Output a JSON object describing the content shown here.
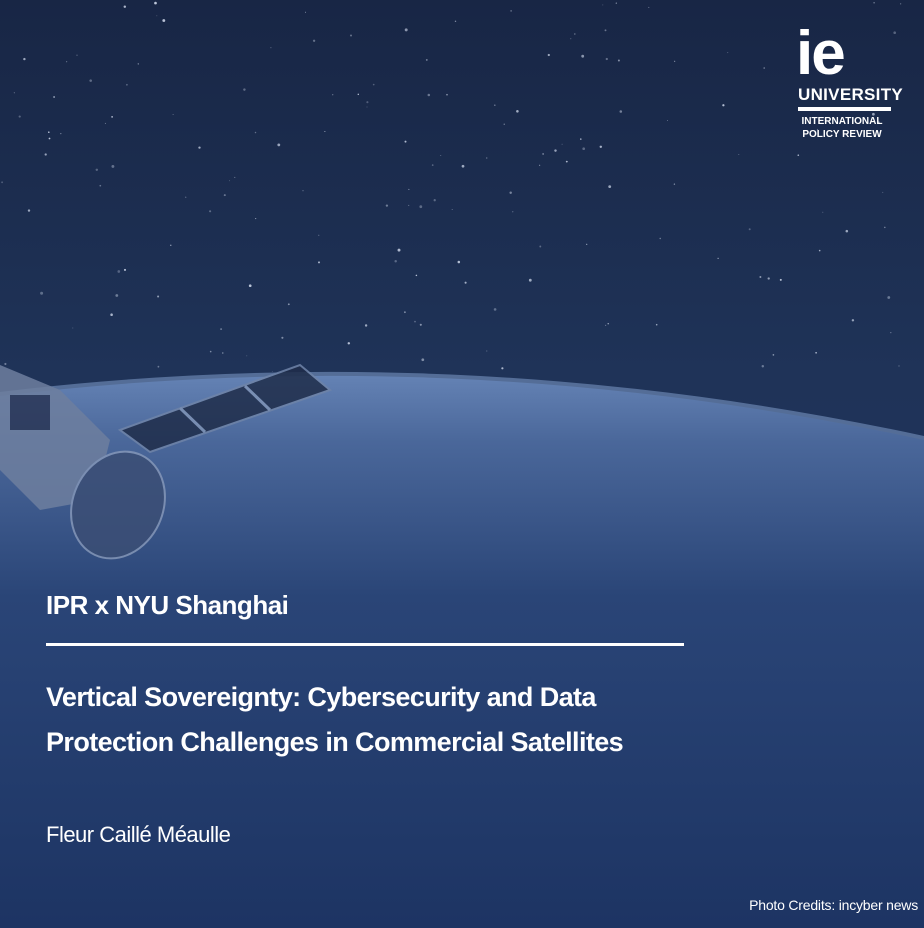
{
  "logo": {
    "mark": "ie",
    "university": "UNIVERSITY",
    "line1": "INTERNATIONAL",
    "line2": "POLICY REVIEW"
  },
  "kicker": "IPR x NYU Shanghai",
  "title": {
    "line1": "Vertical Sovereignty: Cybersecurity and Data",
    "line2": "Protection Challenges in Commercial Satellites"
  },
  "author": "Fleur Caillé Méaulle",
  "photo_credits": "Photo Credits: incyber news",
  "colors": {
    "background": "#1a2a4c",
    "earth_glow": "#7d9ccc",
    "text": "#ffffff"
  }
}
